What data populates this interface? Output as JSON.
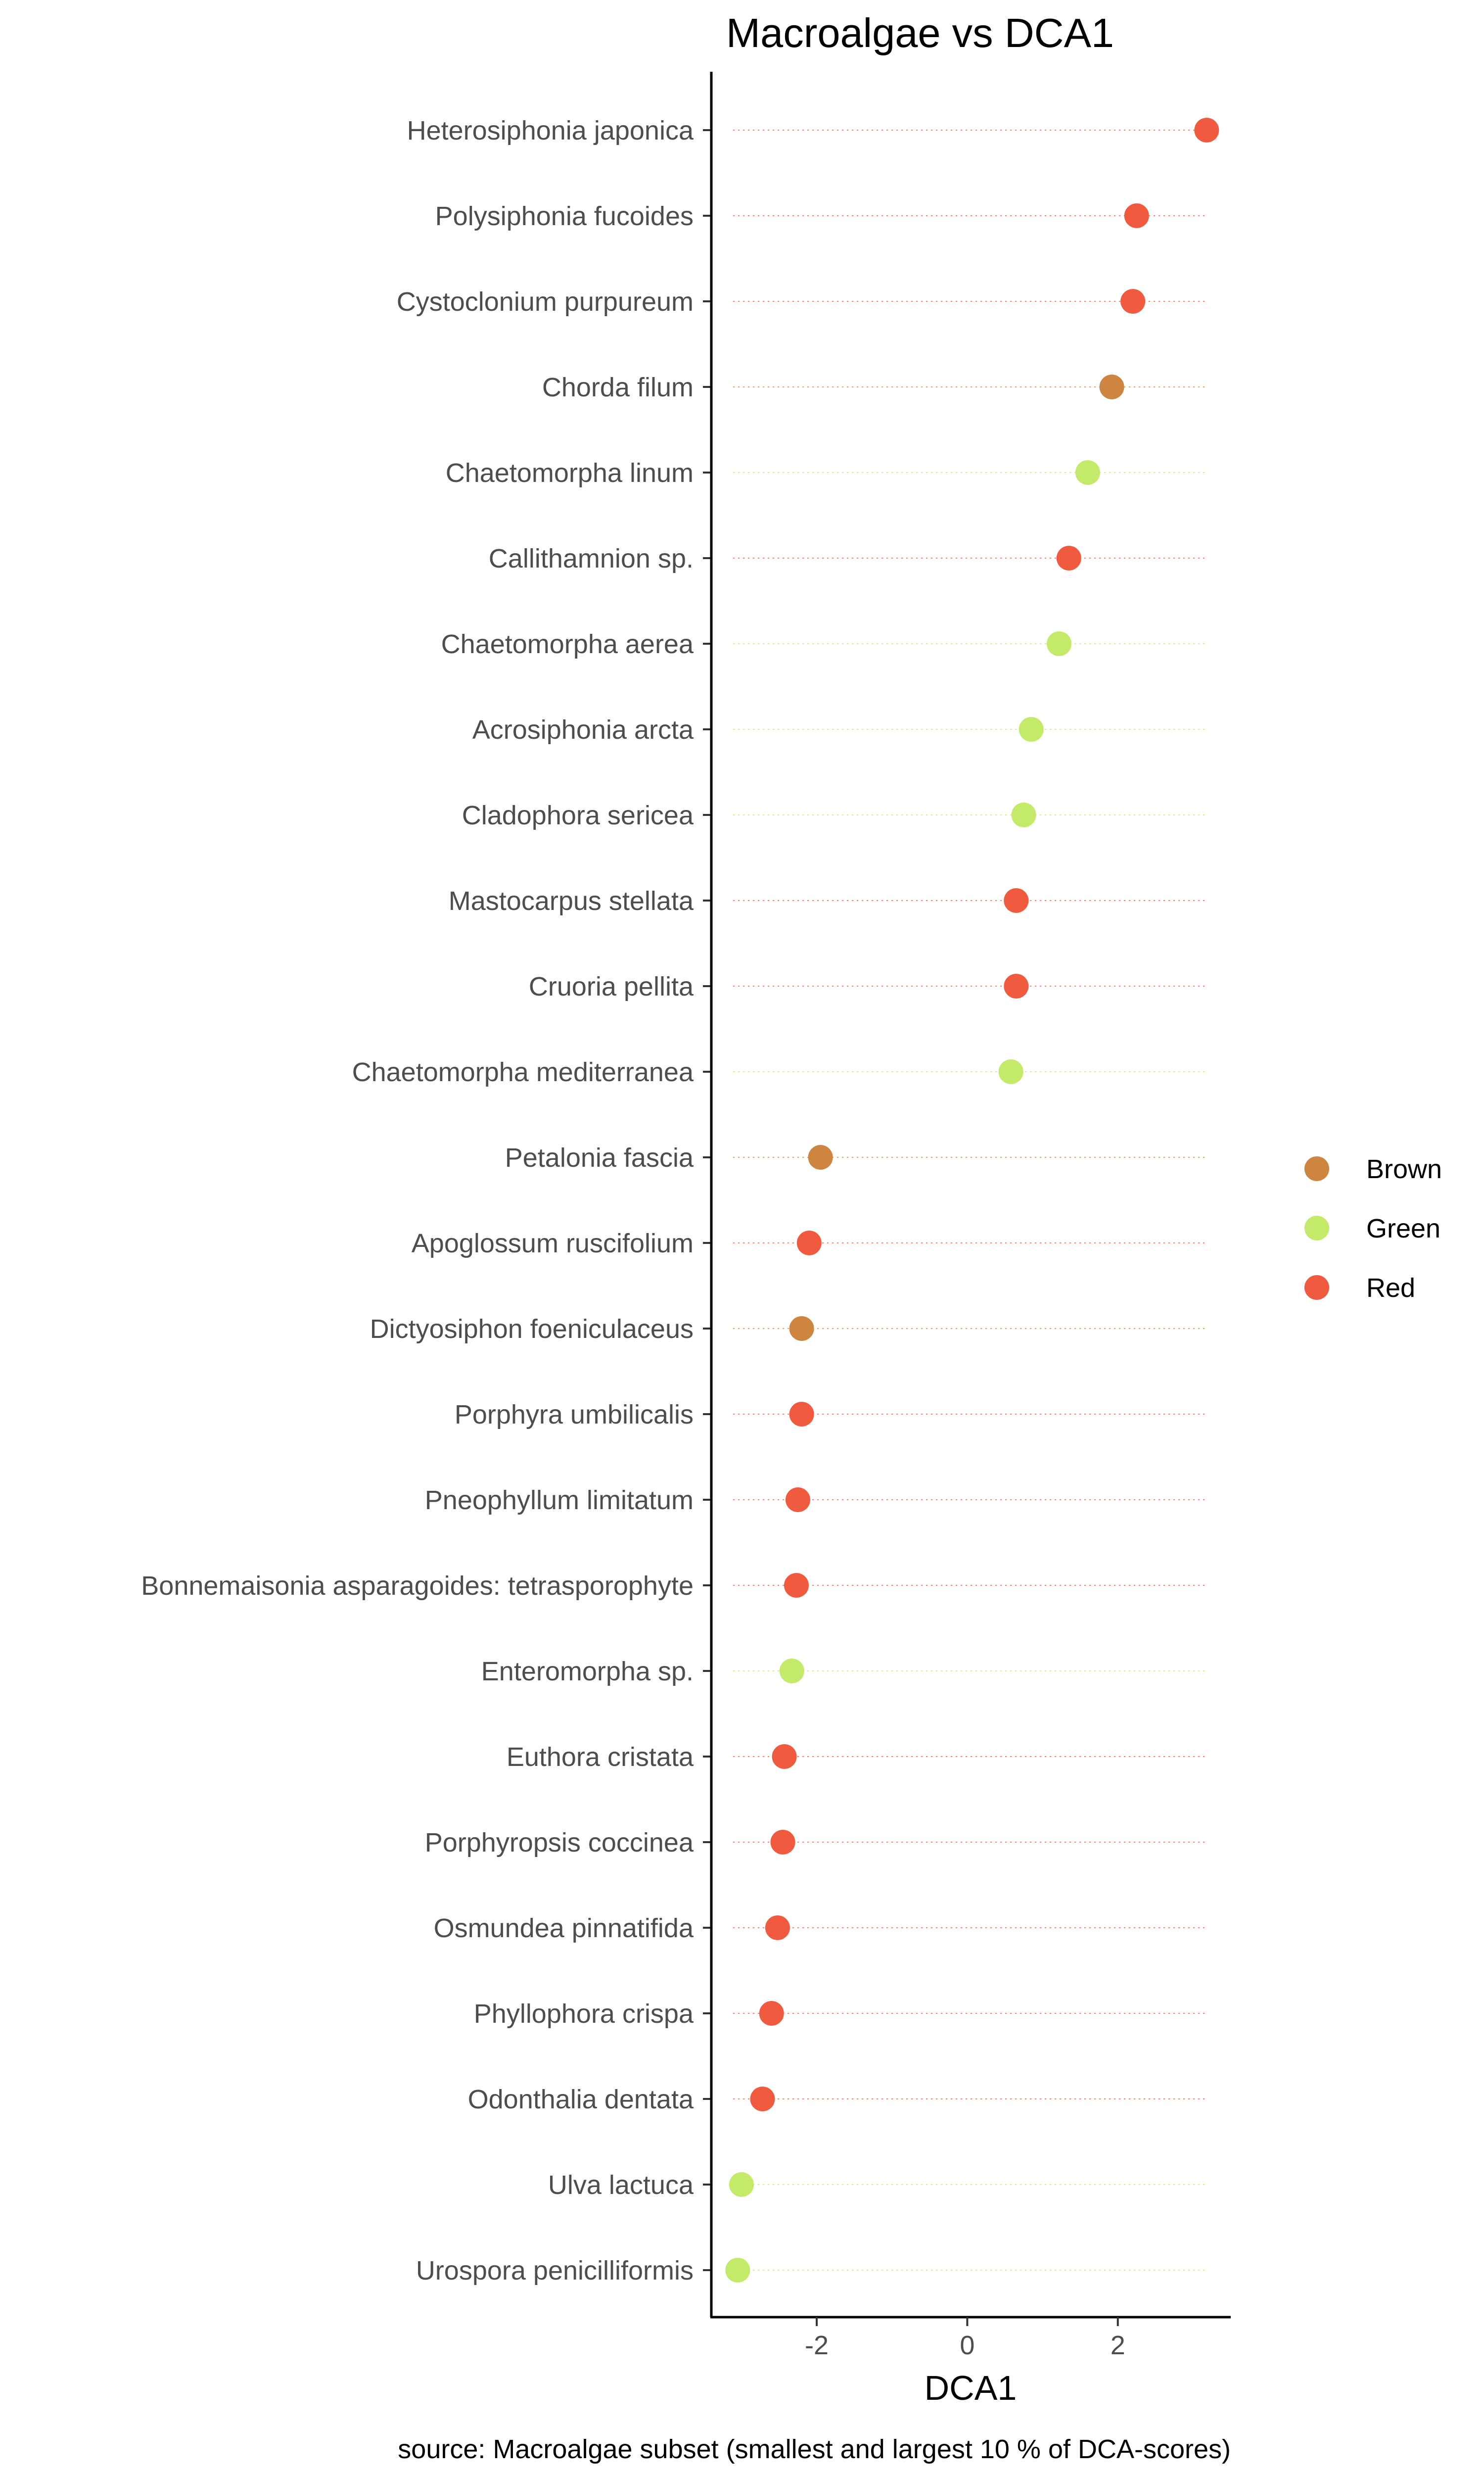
{
  "colors": {
    "Brown": "#cd853f",
    "Green": "#c4ea6a",
    "Red": "#f05a3e"
  },
  "chart_data": {
    "type": "scatter",
    "subtype": "dot-plot (horizontal lollipop)",
    "title": "Macroalgae vs DCA1",
    "xlabel": "DCA1",
    "ylabel": "",
    "caption": "source: Macroalgae subset (smallest and largest 10 % of DCA-scores)",
    "xlim": [
      -3.4,
      3.5
    ],
    "xticks": [
      -2,
      0,
      2
    ],
    "xtick_labels": [
      "-2",
      "0",
      "2"
    ],
    "grid": "dotted horizontal guide lines per category",
    "legend": {
      "title": "",
      "position": "right",
      "entries": [
        "Brown",
        "Green",
        "Red"
      ]
    },
    "categories": [
      "Heterosiphonia japonica",
      "Polysiphonia fucoides",
      "Cystoclonium purpureum",
      "Chorda filum",
      "Chaetomorpha linum",
      "Callithamnion sp.",
      "Chaetomorpha aerea",
      "Acrosiphonia arcta",
      "Cladophora sericea",
      "Mastocarpus stellata",
      "Cruoria pellita",
      "Chaetomorpha mediterranea",
      "Petalonia fascia",
      "Apoglossum ruscifolium",
      "Dictyosiphon foeniculaceus",
      "Porphyra umbilicalis",
      "Pneophyllum limitatum",
      "Bonnemaisonia asparagoides: tetrasporophyte",
      "Enteromorpha sp.",
      "Euthora cristata",
      "Porphyropsis coccinea",
      "Osmundea pinnatifida",
      "Phyllophora crispa",
      "Odonthalia dentata",
      "Ulva lactuca",
      "Urospora penicilliformis"
    ],
    "values": [
      3.18,
      2.25,
      2.2,
      1.92,
      1.6,
      1.35,
      1.22,
      0.85,
      0.75,
      0.65,
      0.65,
      0.58,
      -1.95,
      -2.1,
      -2.2,
      -2.2,
      -2.25,
      -2.27,
      -2.33,
      -2.43,
      -2.45,
      -2.52,
      -2.6,
      -2.72,
      -3.0,
      -3.05
    ],
    "groups": [
      "Red",
      "Red",
      "Red",
      "Brown",
      "Green",
      "Red",
      "Green",
      "Green",
      "Green",
      "Red",
      "Red",
      "Green",
      "Brown",
      "Red",
      "Brown",
      "Red",
      "Red",
      "Red",
      "Green",
      "Red",
      "Red",
      "Red",
      "Red",
      "Red",
      "Green",
      "Green"
    ]
  }
}
